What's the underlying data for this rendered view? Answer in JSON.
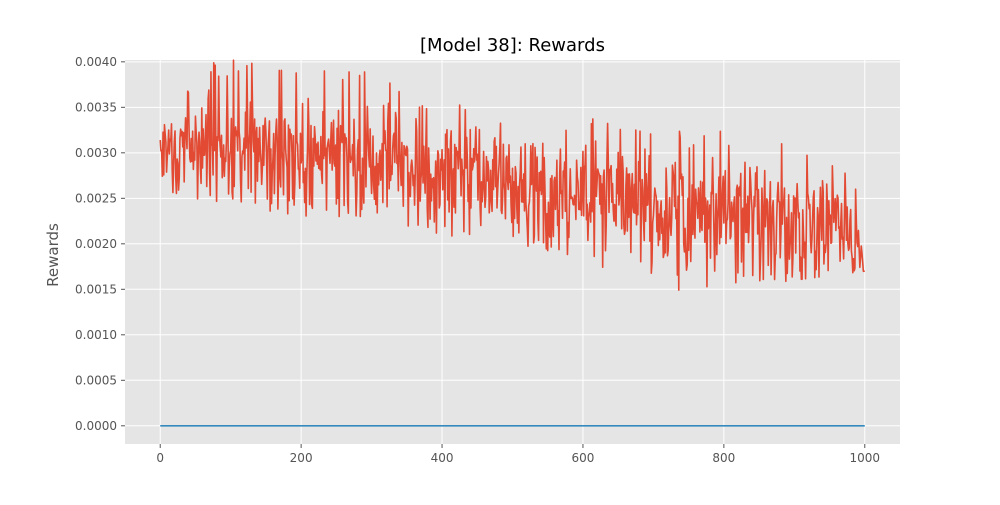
{
  "chart_data": {
    "type": "line",
    "title": "[Model 38]: Rewards",
    "xlabel": "",
    "ylabel": "Rewards",
    "xlim": [
      -50,
      1050
    ],
    "ylim": [
      -0.0002,
      0.00402
    ],
    "grid": true,
    "style": "ggplot",
    "xticks": [
      0,
      200,
      400,
      600,
      800,
      1000
    ],
    "xtick_labels": [
      "0",
      "200",
      "400",
      "600",
      "800",
      "1000"
    ],
    "yticks": [
      0.0,
      0.0005,
      0.001,
      0.0015,
      0.002,
      0.0025,
      0.003,
      0.0035,
      0.004
    ],
    "ytick_labels": [
      "0.0000",
      "0.0005",
      "0.0010",
      "0.0015",
      "0.0020",
      "0.0025",
      "0.0030",
      "0.0035",
      "0.0040"
    ],
    "series": [
      {
        "color": "#e24a33",
        "x": [
          0,
          25,
          50,
          75,
          100,
          125,
          150,
          175,
          200,
          225,
          250,
          275,
          300,
          325,
          350,
          375,
          400,
          425,
          450,
          475,
          500,
          525,
          550,
          575,
          600,
          625,
          650,
          675,
          700,
          710,
          725,
          750,
          775,
          800,
          825,
          850,
          875,
          900,
          925,
          950,
          975,
          1000
        ],
        "y": [
          0.0029,
          0.0031,
          0.0032,
          0.00305,
          0.0031,
          0.00305,
          0.003,
          0.0031,
          0.00295,
          0.0029,
          0.003,
          0.00295,
          0.0029,
          0.0029,
          0.0029,
          0.0028,
          0.00285,
          0.0028,
          0.0027,
          0.0027,
          0.00265,
          0.0026,
          0.0025,
          0.00255,
          0.0027,
          0.0026,
          0.0026,
          0.0025,
          0.0024,
          0.0022,
          0.00245,
          0.0024,
          0.0023,
          0.0024,
          0.00225,
          0.00225,
          0.0022,
          0.0022,
          0.0022,
          0.00225,
          0.0022,
          0.0019
        ],
        "range": {
          "x": [
            0,
            100,
            200,
            300,
            400,
            500,
            600,
            700,
            800,
            900,
            1000
          ],
          "low": [
            0.0026,
            0.0024,
            0.0023,
            0.0023,
            0.0021,
            0.002,
            0.00185,
            0.0014,
            0.0015,
            0.0016,
            0.0017
          ],
          "high": [
            0.0038,
            0.00405,
            0.0039,
            0.0039,
            0.0036,
            0.0033,
            0.0034,
            0.0032,
            0.0033,
            0.0031,
            0.0027
          ]
        }
      },
      {
        "color": "#348abd",
        "x": [
          0,
          1000
        ],
        "y": [
          0.0,
          0.0
        ]
      }
    ]
  }
}
